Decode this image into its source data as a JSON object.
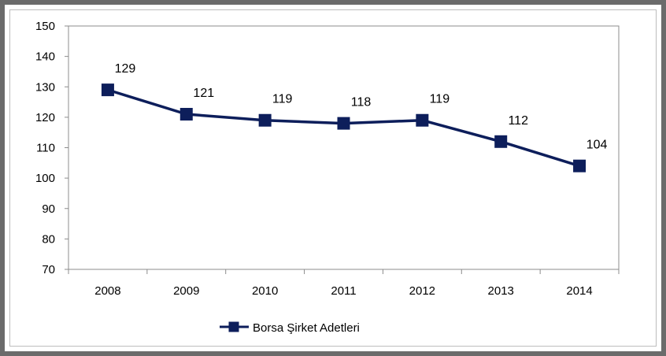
{
  "chart_data": {
    "type": "line",
    "title": "",
    "xlabel": "",
    "ylabel": "",
    "categories": [
      "2008",
      "2009",
      "2010",
      "2011",
      "2012",
      "2013",
      "2014"
    ],
    "series": [
      {
        "name": "Borsa Şirket Adetleri",
        "values": [
          129,
          121,
          119,
          118,
          119,
          112,
          104
        ],
        "color": "#0d1e5b",
        "marker": "square"
      }
    ],
    "ylim": [
      70,
      150
    ],
    "yticks": [
      "70",
      "80",
      "90",
      "100",
      "110",
      "120",
      "130",
      "140",
      "150"
    ],
    "data_labels": [
      "129",
      "121",
      "119",
      "118",
      "119",
      "112",
      "104"
    ],
    "grid": false,
    "legend_position": "bottom"
  }
}
